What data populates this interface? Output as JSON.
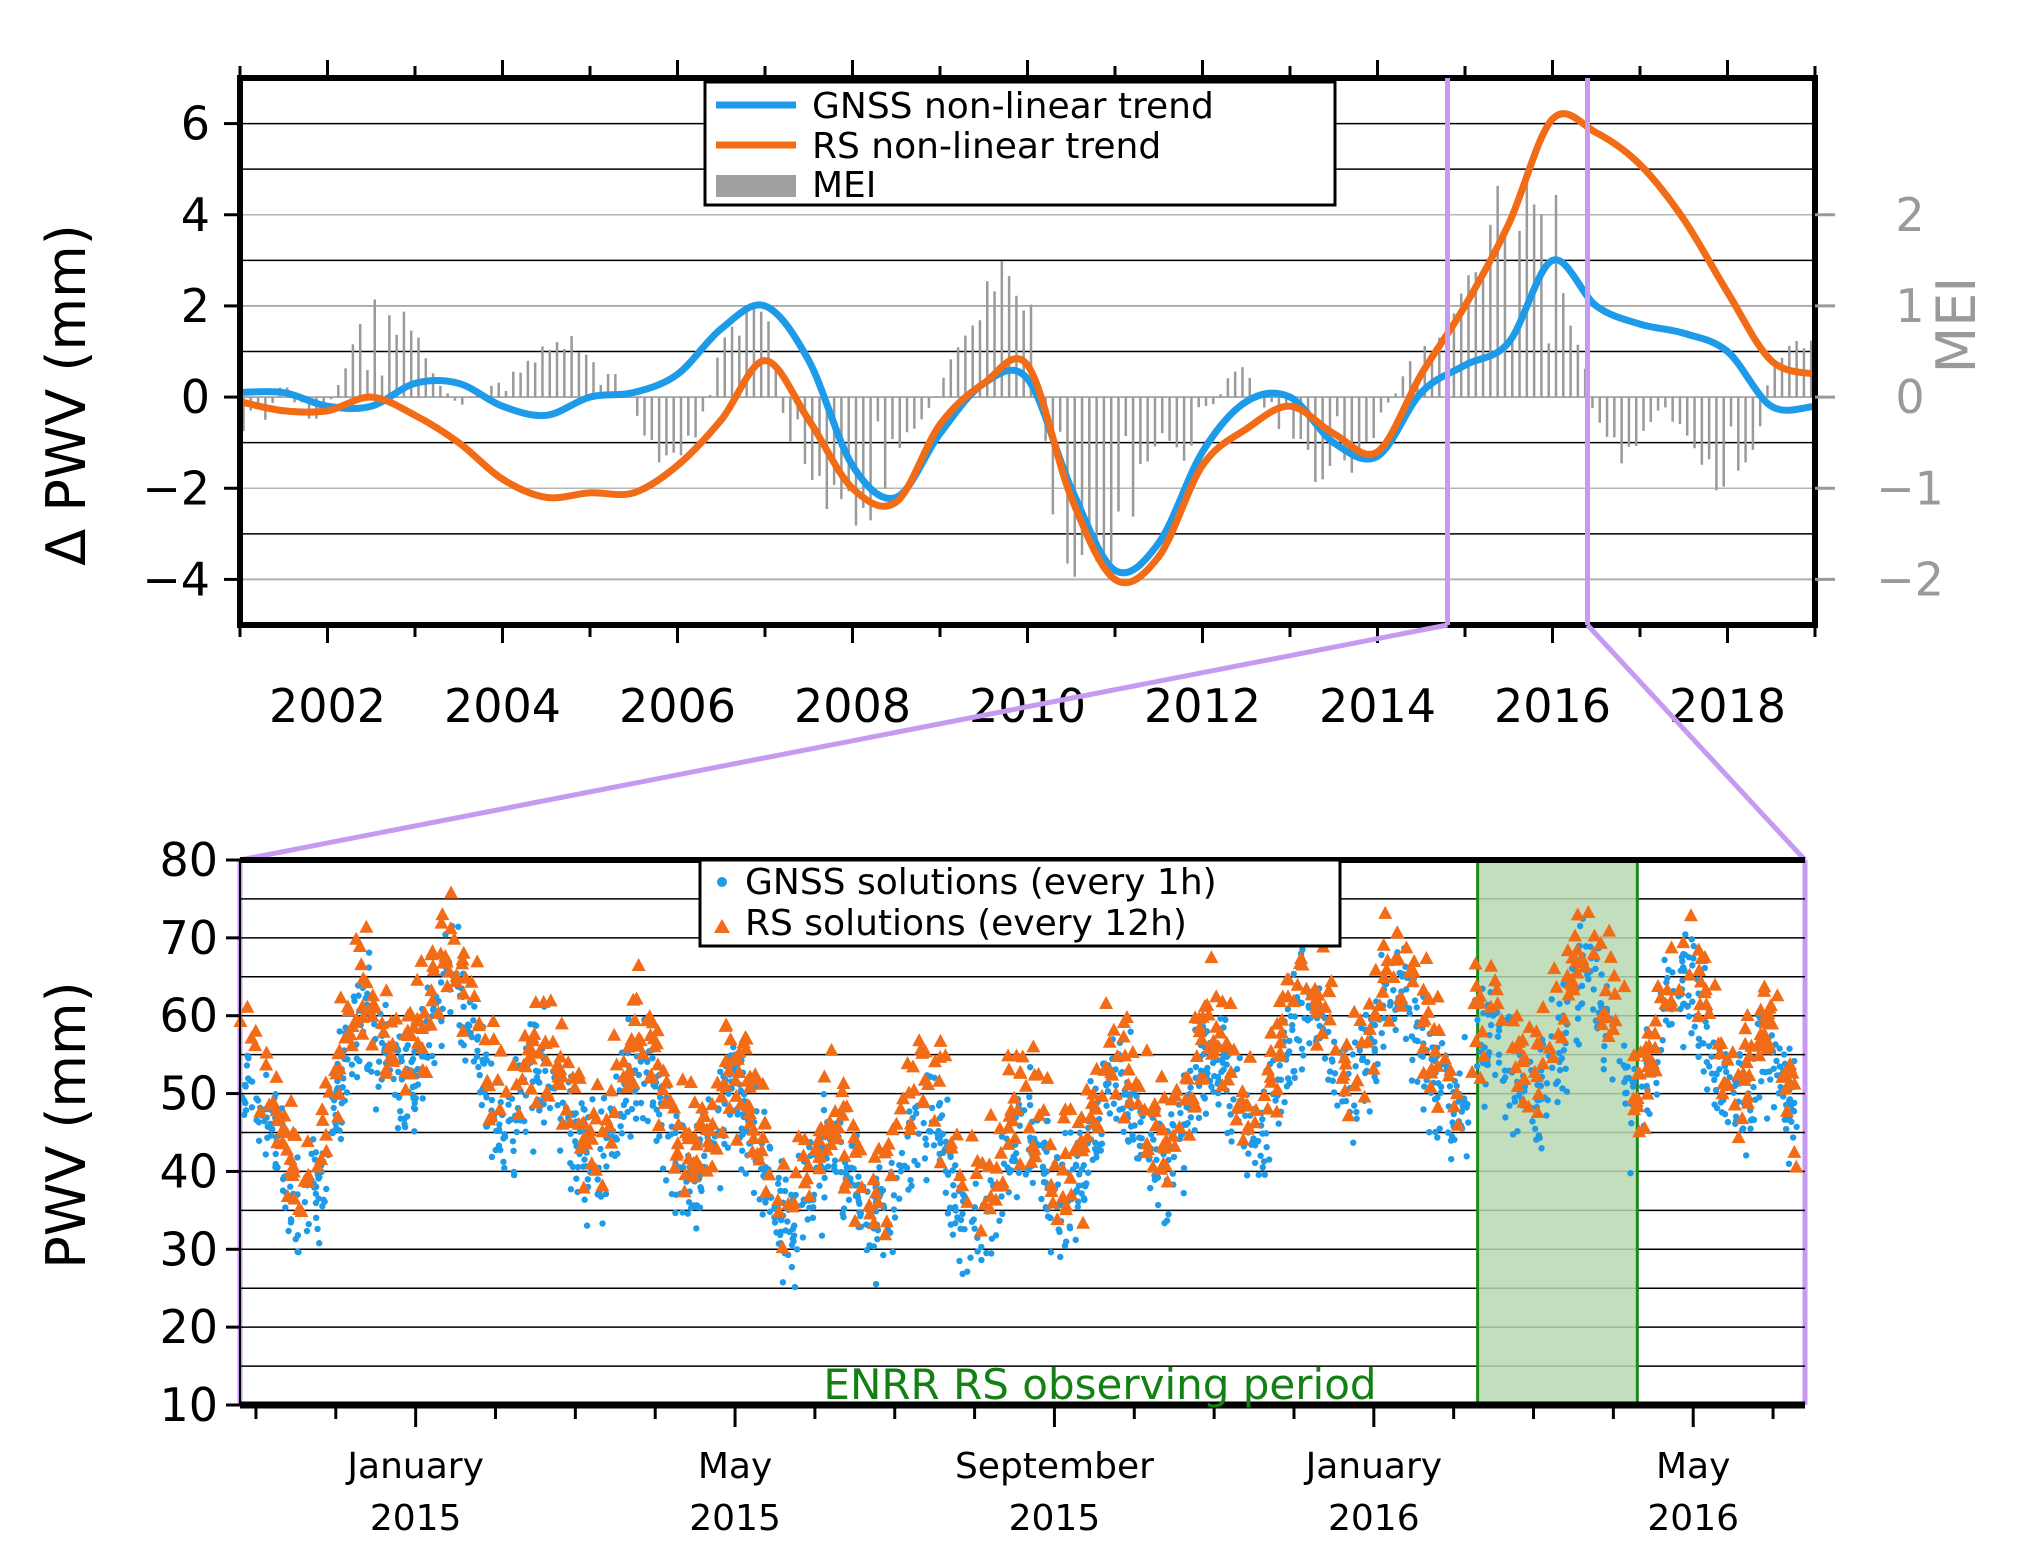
{
  "chart_data": [
    {
      "type": "line",
      "panel": "top",
      "ylabel": "Δ PWV (mm)",
      "ylabel_right": "MEI",
      "xlim": [
        2001.0,
        2019.0
      ],
      "ylim": [
        -5,
        7
      ],
      "ylim_right": [
        -2.5,
        3.5
      ],
      "xticks": [
        2002,
        2004,
        2006,
        2008,
        2010,
        2012,
        2014,
        2016,
        2018
      ],
      "xtick_labels": [
        "2002",
        "2004",
        "2006",
        "2008",
        "2010",
        "2012",
        "2014",
        "2016",
        "2018"
      ],
      "yticks": [
        -4,
        -2,
        0,
        2,
        4,
        6
      ],
      "ytick_labels": [
        "−4",
        "−2",
        "0",
        "2",
        "4",
        "6"
      ],
      "yticks_right": [
        -2,
        -1,
        0,
        1,
        2
      ],
      "ytick_labels_right": [
        "−2",
        "−1",
        "0",
        "1",
        "2"
      ],
      "legend": [
        "GNSS non-linear trend",
        "RS non-linear trend",
        "MEI"
      ],
      "colors": {
        "gnss": "#1e9be8",
        "rs": "#f26b16",
        "mei": "#a0a0a0",
        "zoom": "#c79af2"
      },
      "series": [
        {
          "name": "GNSS non-linear trend",
          "x": [
            2001.0,
            2001.5,
            2002.0,
            2002.5,
            2003.0,
            2003.5,
            2004.0,
            2004.5,
            2005.0,
            2005.5,
            2006.0,
            2006.5,
            2007.0,
            2007.5,
            2008.0,
            2008.5,
            2009.0,
            2009.5,
            2010.0,
            2010.5,
            2011.0,
            2011.5,
            2012.0,
            2012.5,
            2013.0,
            2013.5,
            2014.0,
            2014.5,
            2015.0,
            2015.5,
            2016.0,
            2016.5,
            2017.0,
            2017.5,
            2018.0,
            2018.5,
            2019.0
          ],
          "values": [
            0.1,
            0.1,
            -0.2,
            -0.2,
            0.3,
            0.3,
            -0.2,
            -0.4,
            0.0,
            0.1,
            0.5,
            1.5,
            2.0,
            0.8,
            -1.5,
            -2.2,
            -0.8,
            0.3,
            0.4,
            -2.0,
            -3.8,
            -3.2,
            -1.2,
            -0.1,
            0.0,
            -1.0,
            -1.3,
            0.1,
            0.7,
            1.2,
            3.0,
            2.0,
            1.6,
            1.4,
            1.0,
            -0.2,
            -0.2
          ]
        },
        {
          "name": "RS non-linear trend",
          "x": [
            2001.0,
            2001.5,
            2002.0,
            2002.5,
            2003.0,
            2003.5,
            2004.0,
            2004.5,
            2005.0,
            2005.5,
            2006.0,
            2006.5,
            2007.0,
            2007.5,
            2008.0,
            2008.5,
            2009.0,
            2009.5,
            2010.0,
            2010.5,
            2011.0,
            2011.5,
            2012.0,
            2012.5,
            2013.0,
            2013.5,
            2014.0,
            2014.5,
            2015.0,
            2015.5,
            2016.0,
            2016.5,
            2017.0,
            2017.5,
            2018.0,
            2018.5,
            2019.0
          ],
          "values": [
            -0.1,
            -0.3,
            -0.3,
            0.0,
            -0.4,
            -1.0,
            -1.8,
            -2.2,
            -2.1,
            -2.1,
            -1.5,
            -0.5,
            0.8,
            -0.5,
            -2.0,
            -2.3,
            -0.6,
            0.3,
            0.7,
            -2.2,
            -4.0,
            -3.5,
            -1.5,
            -0.7,
            -0.2,
            -0.8,
            -1.2,
            0.5,
            2.0,
            3.8,
            6.1,
            5.8,
            5.1,
            3.9,
            2.3,
            0.8,
            0.5
          ]
        },
        {
          "name": "MEI",
          "type": "bar",
          "x": [
            2001.0,
            2001.25,
            2001.5,
            2001.75,
            2002.0,
            2002.25,
            2002.5,
            2002.75,
            2003.0,
            2003.25,
            2003.5,
            2003.75,
            2004.0,
            2004.25,
            2004.5,
            2004.75,
            2005.0,
            2005.25,
            2005.5,
            2005.75,
            2006.0,
            2006.25,
            2006.5,
            2006.75,
            2007.0,
            2007.25,
            2007.5,
            2007.75,
            2008.0,
            2008.25,
            2008.5,
            2008.75,
            2009.0,
            2009.25,
            2009.5,
            2009.75,
            2010.0,
            2010.25,
            2010.5,
            2010.75,
            2011.0,
            2011.25,
            2011.5,
            2011.75,
            2012.0,
            2012.25,
            2012.5,
            2012.75,
            2013.0,
            2013.25,
            2013.5,
            2013.75,
            2014.0,
            2014.25,
            2014.5,
            2014.75,
            2015.0,
            2015.25,
            2015.5,
            2015.75,
            2016.0,
            2016.25,
            2016.5,
            2016.75,
            2017.0,
            2017.25,
            2017.5,
            2017.75,
            2018.0,
            2018.25,
            2018.5,
            2018.75
          ],
          "values": [
            -0.5,
            -0.3,
            0.2,
            -0.3,
            -0.1,
            0.4,
            0.9,
            0.8,
            0.7,
            0.2,
            -0.1,
            0.1,
            0.2,
            0.3,
            0.5,
            0.6,
            0.5,
            0.3,
            -0.1,
            -0.6,
            -0.8,
            -0.3,
            0.5,
            0.8,
            0.9,
            -0.4,
            -1.0,
            -1.2,
            -1.3,
            -1.1,
            -0.5,
            -0.3,
            0.1,
            0.6,
            1.0,
            1.3,
            1.2,
            -1.0,
            -2.0,
            -1.8,
            -1.6,
            -1.0,
            -0.5,
            -0.6,
            -0.4,
            0.2,
            0.3,
            -0.2,
            -0.4,
            -0.8,
            -0.9,
            -0.7,
            -0.3,
            0.2,
            0.5,
            0.6,
            1.0,
            1.8,
            2.1,
            2.3,
            2.0,
            0.8,
            -0.3,
            -0.6,
            -0.5,
            -0.1,
            -0.4,
            -0.9,
            -0.9,
            -0.8,
            0.3,
            0.5
          ]
        }
      ],
      "zoom_window": [
        2014.8,
        2016.4
      ]
    },
    {
      "type": "scatter",
      "panel": "bottom",
      "ylabel": "PWV (mm)",
      "xlim": [
        0,
        19.6
      ],
      "ylim": [
        10,
        80
      ],
      "yticks": [
        10,
        20,
        30,
        40,
        50,
        60,
        70,
        80
      ],
      "ytick_labels": [
        "10",
        "20",
        "30",
        "40",
        "50",
        "60",
        "70",
        "80"
      ],
      "month_ticks": [
        {
          "x": 2.2,
          "month": "January",
          "year": "2015"
        },
        {
          "x": 6.2,
          "month": "May",
          "year": "2015"
        },
        {
          "x": 10.2,
          "month": "September",
          "year": "2015"
        },
        {
          "x": 14.2,
          "month": "January",
          "year": "2016"
        },
        {
          "x": 18.2,
          "month": "May",
          "year": "2016"
        }
      ],
      "legend": [
        "GNSS solutions (every 1h)",
        "RS solutions (every 12h)"
      ],
      "shaded_period": {
        "x0": 15.5,
        "x1": 17.5,
        "label": "ENRR RS observing period"
      },
      "colors": {
        "gnss": "#1e9be8",
        "rs": "#f26b16",
        "shade": "#b9d8b1",
        "shade_edge": "#1a8a1a"
      },
      "envelope": {
        "x": [
          0,
          0.3,
          0.6,
          1.0,
          1.5,
          2.0,
          2.5,
          3.0,
          3.5,
          4.0,
          4.5,
          5.0,
          5.5,
          6.0,
          6.5,
          7.0,
          7.5,
          8.0,
          8.5,
          9.0,
          9.5,
          10.0,
          10.5,
          11.0,
          11.5,
          12.0,
          12.5,
          13.0,
          13.5,
          14.0,
          14.5,
          15.0,
          15.5,
          16.0,
          16.5,
          17.0,
          17.5,
          18.0,
          18.5,
          19.0,
          19.6
        ],
        "values": [
          50,
          42,
          38,
          44,
          54,
          57,
          58,
          56,
          50,
          45,
          47,
          47,
          45,
          44,
          42,
          38,
          36,
          40,
          42,
          40,
          38,
          40,
          43,
          45,
          47,
          48,
          49,
          52,
          55,
          57,
          58,
          55,
          52,
          50,
          60,
          58,
          54,
          58,
          57,
          52,
          40
        ]
      },
      "spread": 11
    }
  ]
}
